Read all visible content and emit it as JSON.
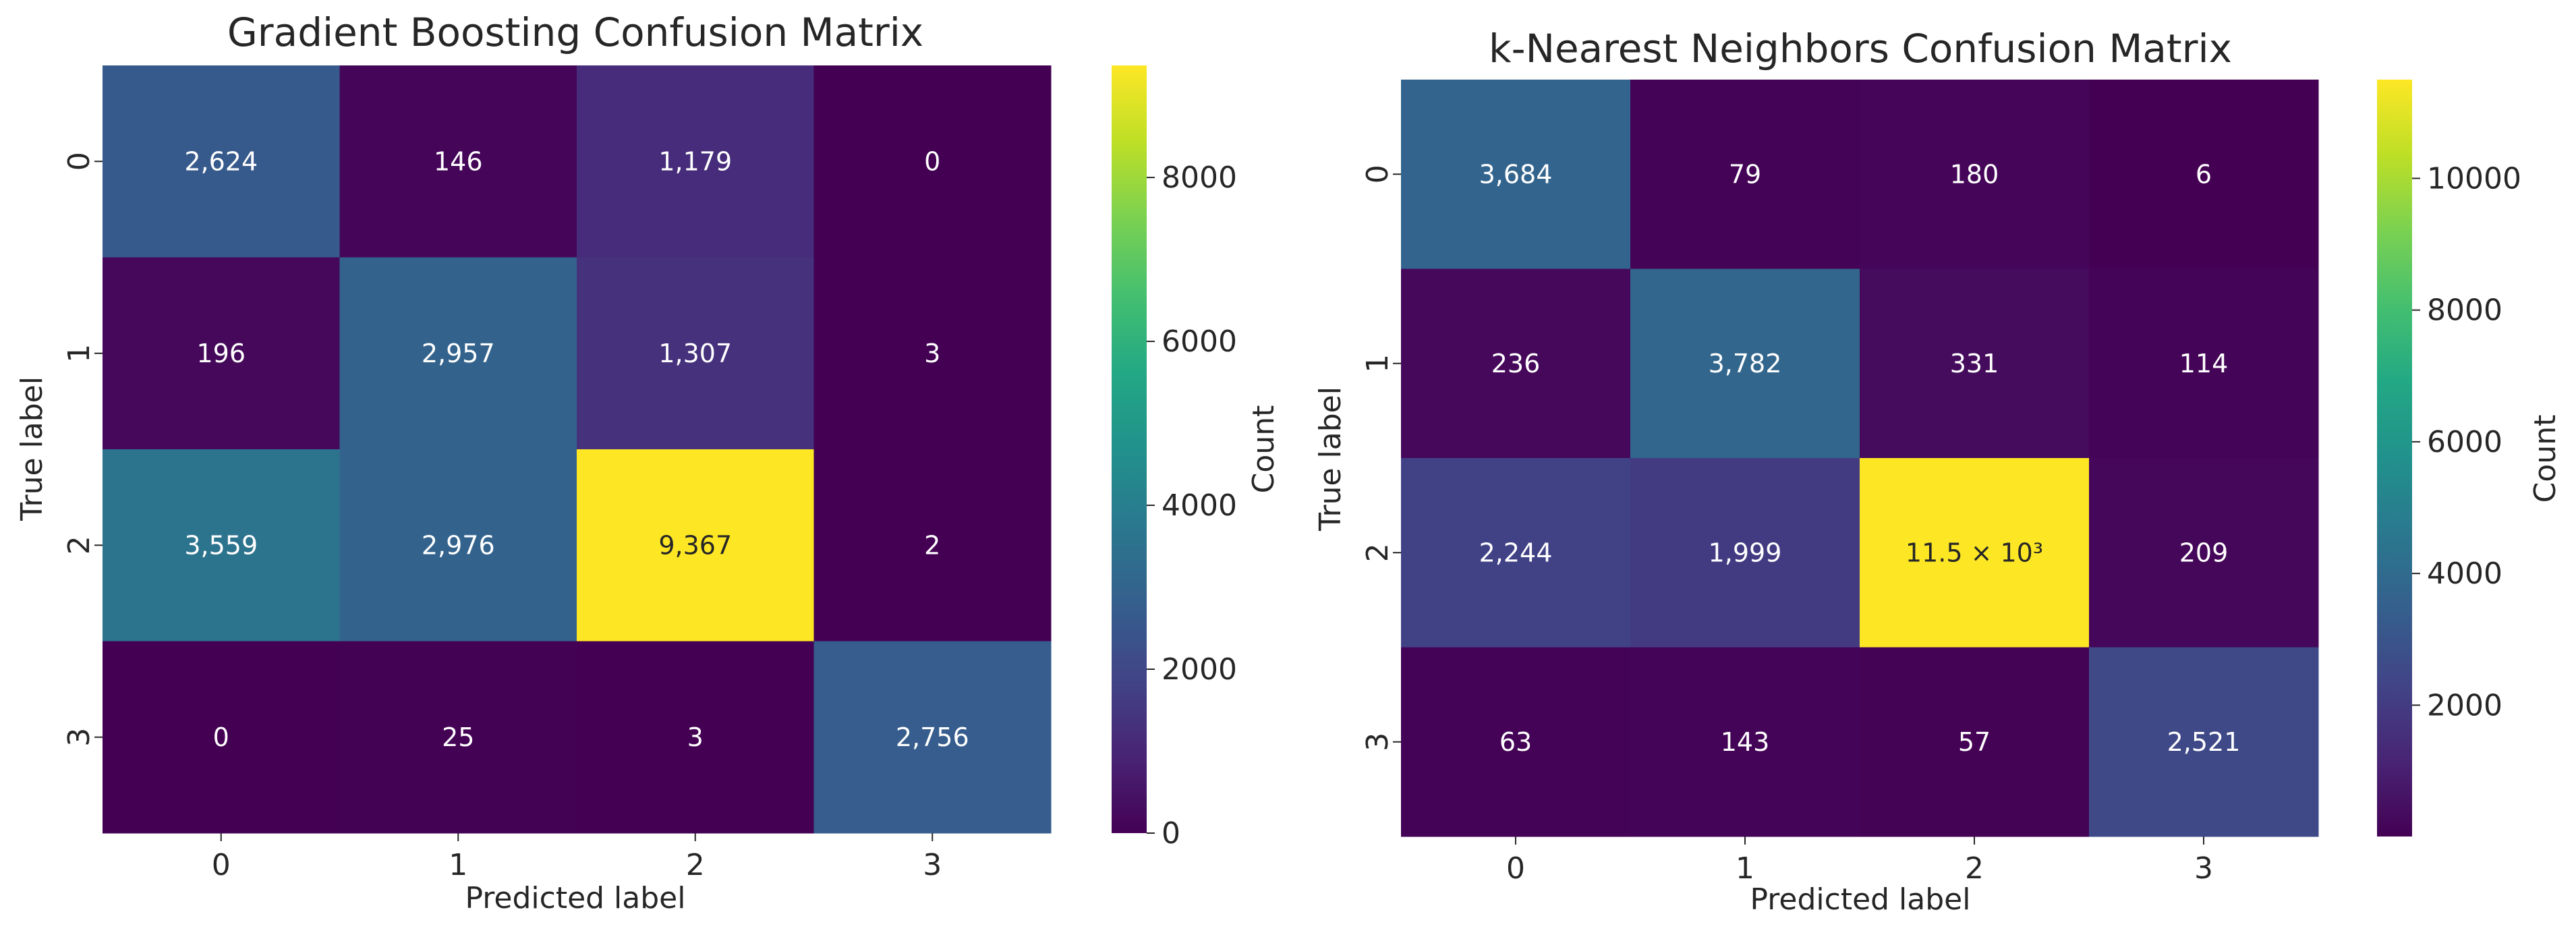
{
  "chart_data": [
    {
      "type": "heatmap",
      "title": "Gradient Boosting Confusion Matrix",
      "xlabel": "Predicted label",
      "ylabel": "True label",
      "x_ticks": [
        "0",
        "1",
        "2",
        "3"
      ],
      "y_ticks": [
        "0",
        "1",
        "2",
        "3"
      ],
      "values": [
        [
          2624,
          146,
          1179,
          0
        ],
        [
          196,
          2957,
          1307,
          3
        ],
        [
          3559,
          2976,
          9367,
          2
        ],
        [
          0,
          25,
          3,
          2756
        ]
      ],
      "cell_labels": [
        [
          "2,624",
          "146",
          "1,179",
          "0"
        ],
        [
          "196",
          "2,957",
          "1,307",
          "3"
        ],
        [
          "3,559",
          "2,976",
          "9,367",
          "2"
        ],
        [
          "0",
          "25",
          "3",
          "2,756"
        ]
      ],
      "colormap": "viridis",
      "colorbar": {
        "label": "Count",
        "vmin": 0,
        "vmax": 9367,
        "ticks": [
          0,
          2000,
          4000,
          6000,
          8000
        ],
        "tick_labels": [
          "0",
          "2000",
          "4000",
          "6000",
          "8000"
        ]
      }
    },
    {
      "type": "heatmap",
      "title": "k-Nearest Neighbors Confusion Matrix",
      "xlabel": "Predicted label",
      "ylabel": "True label",
      "x_ticks": [
        "0",
        "1",
        "2",
        "3"
      ],
      "y_ticks": [
        "0",
        "1",
        "2",
        "3"
      ],
      "values": [
        [
          3684,
          79,
          180,
          6
        ],
        [
          236,
          3782,
          331,
          114
        ],
        [
          2244,
          1999,
          11500,
          209
        ],
        [
          63,
          143,
          57,
          2521
        ]
      ],
      "cell_labels": [
        [
          "3,684",
          "79",
          "180",
          "6"
        ],
        [
          "236",
          "3,782",
          "331",
          "114"
        ],
        [
          "2,244",
          "1,999",
          "11.5 × 10³",
          "209"
        ],
        [
          "63",
          "143",
          "57",
          "2,521"
        ]
      ],
      "colormap": "viridis",
      "colorbar": {
        "label": "Count",
        "vmin": 6,
        "vmax": 11500,
        "ticks": [
          2000,
          4000,
          6000,
          8000,
          10000
        ],
        "tick_labels": [
          "2000",
          "4000",
          "6000",
          "8000",
          "10000"
        ]
      }
    }
  ]
}
